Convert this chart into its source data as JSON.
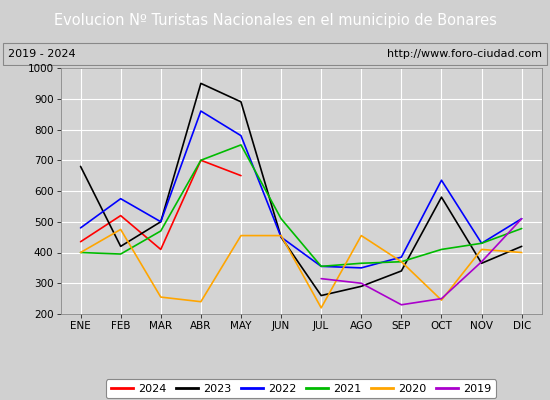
{
  "title": "Evolucion Nº Turistas Nacionales en el municipio de Bonares",
  "subtitle_left": "2019 - 2024",
  "subtitle_right": "http://www.foro-ciudad.com",
  "months": [
    "ENE",
    "FEB",
    "MAR",
    "ABR",
    "MAY",
    "JUN",
    "JUL",
    "AGO",
    "SEP",
    "OCT",
    "NOV",
    "DIC"
  ],
  "ylim": [
    200,
    1000
  ],
  "yticks": [
    200,
    300,
    400,
    500,
    600,
    700,
    800,
    900,
    1000
  ],
  "series": {
    "2024": {
      "color": "#ff0000",
      "values": [
        435,
        520,
        410,
        700,
        650,
        null,
        null,
        null,
        null,
        null,
        null,
        null
      ]
    },
    "2023": {
      "color": "#000000",
      "values": [
        680,
        420,
        500,
        950,
        890,
        450,
        260,
        290,
        340,
        580,
        365,
        420
      ]
    },
    "2022": {
      "color": "#0000ff",
      "values": [
        480,
        575,
        500,
        860,
        780,
        450,
        355,
        350,
        385,
        635,
        430,
        510
      ]
    },
    "2021": {
      "color": "#00bb00",
      "values": [
        400,
        395,
        470,
        700,
        750,
        510,
        355,
        365,
        370,
        410,
        430,
        478
      ]
    },
    "2020": {
      "color": "#ffa500",
      "values": [
        400,
        475,
        255,
        240,
        455,
        455,
        220,
        455,
        370,
        245,
        410,
        400
      ]
    },
    "2019": {
      "color": "#aa00cc",
      "values": [
        null,
        null,
        null,
        null,
        null,
        null,
        315,
        300,
        230,
        250,
        370,
        510
      ]
    }
  },
  "title_bg_color": "#4472c4",
  "title_font_color": "#ffffff",
  "subtitle_bg_color": "#d8d8d8",
  "plot_bg_color": "#d4d4d4",
  "grid_color": "#ffffff",
  "fig_bg_color": "#d0d0d0",
  "legend_order": [
    "2024",
    "2023",
    "2022",
    "2021",
    "2020",
    "2019"
  ]
}
